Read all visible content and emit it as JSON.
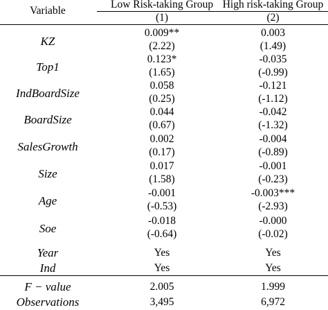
{
  "header": {
    "variable_label": "Variable",
    "col1_title": "Low Risk-taking Group",
    "col2_title": "High risk-taking Group",
    "col1_num": "(1)",
    "col2_num": "(2)"
  },
  "rows": [
    {
      "label": "KZ",
      "c1": "0.009**",
      "c2": "0.003",
      "t1": "(2.22)",
      "t2": "(1.49)"
    },
    {
      "label": "Top1",
      "c1": "0.123*",
      "c2": "-0.035",
      "t1": "(1.65)",
      "t2": "(-0.99)"
    },
    {
      "label": "IndBoardSize",
      "c1": "0.058",
      "c2": "-0.121",
      "t1": "(0.25)",
      "t2": "(-1.12)"
    },
    {
      "label": "BoardSize",
      "c1": "0.044",
      "c2": "-0.042",
      "t1": "(0.67)",
      "t2": "(-1.32)"
    },
    {
      "label": "SalesGrowth",
      "c1": "0.002",
      "c2": "-0.004",
      "t1": "(0.17)",
      "t2": "(-0.89)"
    },
    {
      "label": "Size",
      "c1": "0.017",
      "c2": "-0.001",
      "t1": "(1.58)",
      "t2": "(-0.23)"
    },
    {
      "label": "Age",
      "c1": "-0.001",
      "c2": "-0.003***",
      "t1": "(-0.53)",
      "t2": "(-2.93)"
    },
    {
      "label": "Soe",
      "c1": "-0.018",
      "c2": "-0.000",
      "t1": "(-0.64)",
      "t2": "(-0.02)"
    }
  ],
  "controls": [
    {
      "label": "Year",
      "c1": "Yes",
      "c2": "Yes"
    },
    {
      "label": "Ind",
      "c1": "Yes",
      "c2": "Yes"
    }
  ],
  "stats": [
    {
      "label": "F − value",
      "c1": "2.005",
      "c2": "1.999"
    },
    {
      "label": "Observations",
      "c1": "3,495",
      "c2": "6,972"
    }
  ]
}
